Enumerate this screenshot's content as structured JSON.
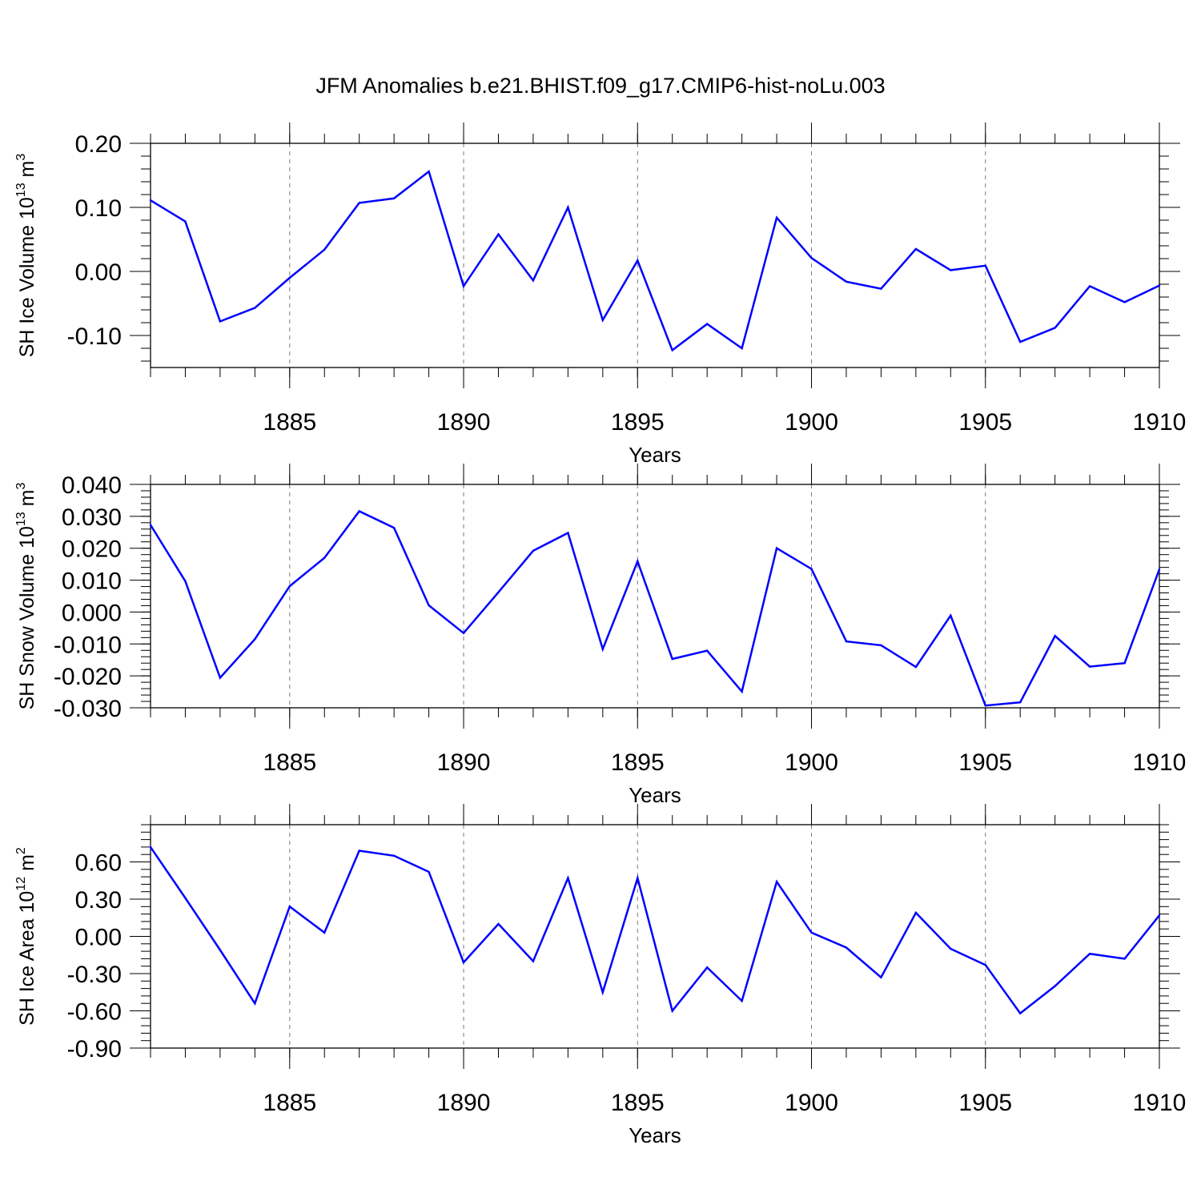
{
  "chart_data": {
    "title": "JFM Anomalies b.e21.BHIST.f09_g17.CMIP6-hist-noLu.003",
    "years": [
      1881,
      1882,
      1883,
      1884,
      1885,
      1886,
      1887,
      1888,
      1889,
      1890,
      1891,
      1892,
      1893,
      1894,
      1895,
      1896,
      1897,
      1898,
      1899,
      1900,
      1901,
      1902,
      1903,
      1904,
      1905,
      1906,
      1907,
      1908,
      1909,
      1910
    ],
    "xlim": [
      1881,
      1910
    ],
    "x_ticks": [
      "1885",
      "1890",
      "1895",
      "1900",
      "1905",
      "1910"
    ],
    "line_color": "#0000ff",
    "panels": [
      {
        "type": "line",
        "ylabel": "SH Ice Volume 10",
        "ylabel_exp": "13",
        "ylabel_unit": " m",
        "ylabel_unit_exp": "3",
        "xlabel": "Years",
        "ylim": [
          -0.15,
          0.2
        ],
        "y_ticks": [
          "0.20",
          "0.10",
          "0.00",
          "-0.10"
        ],
        "values": [
          0.111,
          0.078,
          -0.078,
          -0.057,
          -0.01,
          0.034,
          0.107,
          0.114,
          0.156,
          -0.023,
          0.058,
          -0.014,
          0.1,
          -0.076,
          0.017,
          -0.123,
          -0.082,
          -0.12,
          0.084,
          0.021,
          -0.016,
          -0.027,
          0.035,
          0.002,
          0.009,
          -0.11,
          -0.088,
          -0.023,
          -0.048,
          -0.022
        ]
      },
      {
        "type": "line",
        "ylabel": "SH Snow Volume 10",
        "ylabel_exp": "13",
        "ylabel_unit": " m",
        "ylabel_unit_exp": "3",
        "xlabel": "Years",
        "ylim": [
          -0.03,
          0.04
        ],
        "y_ticks": [
          "0.040",
          "0.030",
          "0.020",
          "0.010",
          "0.000",
          "-0.010",
          "-0.020",
          "-0.030"
        ],
        "values": [
          0.0273,
          0.0097,
          -0.0206,
          -0.0085,
          0.0081,
          0.017,
          0.0316,
          0.0264,
          0.0021,
          -0.0066,
          0.0062,
          0.0192,
          0.0248,
          -0.0116,
          0.0159,
          -0.0147,
          -0.0121,
          -0.0249,
          0.02,
          0.0135,
          -0.0092,
          -0.0104,
          -0.0172,
          -0.0011,
          -0.0293,
          -0.0283,
          -0.0075,
          -0.0171,
          -0.016,
          0.0134
        ]
      },
      {
        "type": "line",
        "ylabel": "SH Ice Area 10",
        "ylabel_exp": "12",
        "ylabel_unit": " m",
        "ylabel_unit_exp": "2",
        "xlabel": "Years",
        "ylim": [
          -0.9,
          0.9
        ],
        "y_ticks": [
          "0.60",
          "0.30",
          "0.00",
          "-0.30",
          "-0.60",
          "-0.90"
        ],
        "values": [
          0.72,
          0.31,
          -0.11,
          -0.54,
          0.24,
          0.03,
          0.69,
          0.65,
          0.52,
          -0.21,
          0.1,
          -0.2,
          0.47,
          -0.45,
          0.47,
          -0.6,
          -0.25,
          -0.52,
          0.44,
          0.03,
          -0.09,
          -0.33,
          0.19,
          -0.1,
          -0.23,
          -0.62,
          -0.4,
          -0.14,
          -0.18,
          0.17
        ]
      }
    ]
  }
}
